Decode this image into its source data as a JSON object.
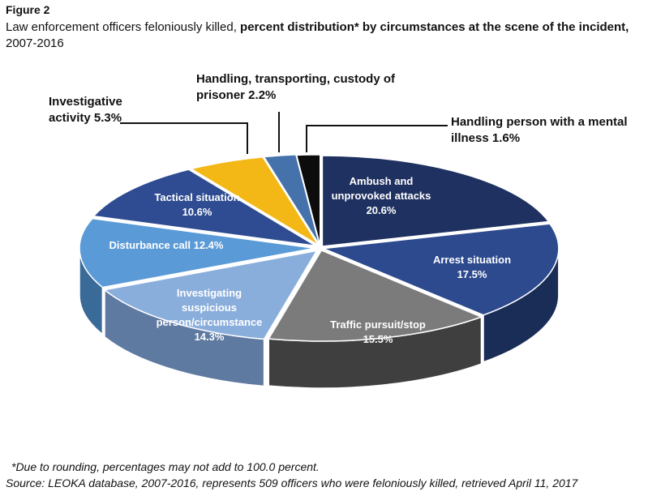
{
  "figure_label": "Figure 2",
  "title": {
    "pre": "Law enforcement officers feloniously killed, ",
    "bold": "percent distribution* by circumstances at the scene of the incident,",
    "post": " 2007-2016"
  },
  "footnote": "*Due to rounding, percentages may not add to 100.0 percent.",
  "source": "Source: LEOKA database, 2007-2016, represents 509 officers who were feloniously killed, retrieved April 11, 2017",
  "chart_data": {
    "type": "pie",
    "title": "Law enforcement officers feloniously killed, percent distribution* by circumstances at the scene of the incident, 2007-2016",
    "style": "3d-exploded",
    "unit": "percent",
    "slices": [
      {
        "label": "Ambush and unprovoked attacks",
        "value": 20.6,
        "color": "#1f3160",
        "label_lines": [
          "Ambush and",
          "unprovoked attacks",
          "20.6%"
        ],
        "label_color": "#ffffff"
      },
      {
        "label": "Arrest situation",
        "value": 17.5,
        "color": "#2d4a8f",
        "label_lines": [
          "Arrest situation",
          "17.5%"
        ],
        "label_color": "#ffffff"
      },
      {
        "label": "Traffic pursuit/stop",
        "value": 15.5,
        "color": "#7b7b7b",
        "label_lines": [
          "Traffic pursuit/stop",
          "15.5%"
        ],
        "label_color": "#ffffff"
      },
      {
        "label": "Investigating suspicious person/circumstance",
        "value": 14.3,
        "color": "#8aaedc",
        "label_lines": [
          "Investigating",
          "suspicious",
          "person/circumstance",
          "14.3%"
        ],
        "label_color": "#ffffff"
      },
      {
        "label": "Disturbance call",
        "value": 12.4,
        "color": "#5a9ad6",
        "label_lines": [
          "Disturbance call 12.4%"
        ],
        "label_color": "#ffffff"
      },
      {
        "label": "Tactical situation",
        "value": 10.6,
        "color": "#2f4c92",
        "label_lines": [
          "Tactical situation",
          "10.6%"
        ],
        "label_color": "#ffffff"
      },
      {
        "label": "Investigative activity",
        "value": 5.3,
        "color": "#f3b816",
        "label_lines": [
          "Investigative",
          "activity 5.3%"
        ],
        "label_color": "#111111"
      },
      {
        "label": "Handling, transporting, custody of prisoner",
        "value": 2.2,
        "color": "#4572aa",
        "label_lines": [
          "Handling, transporting, custody of",
          "prisoner 2.2%"
        ],
        "label_color": "#111111"
      },
      {
        "label": "Handling person with a mental illness",
        "value": 1.6,
        "color": "#0c0c0c",
        "label_lines": [
          "Handling person with a mental",
          "illness 1.6%"
        ],
        "label_color": "#111111"
      }
    ]
  }
}
